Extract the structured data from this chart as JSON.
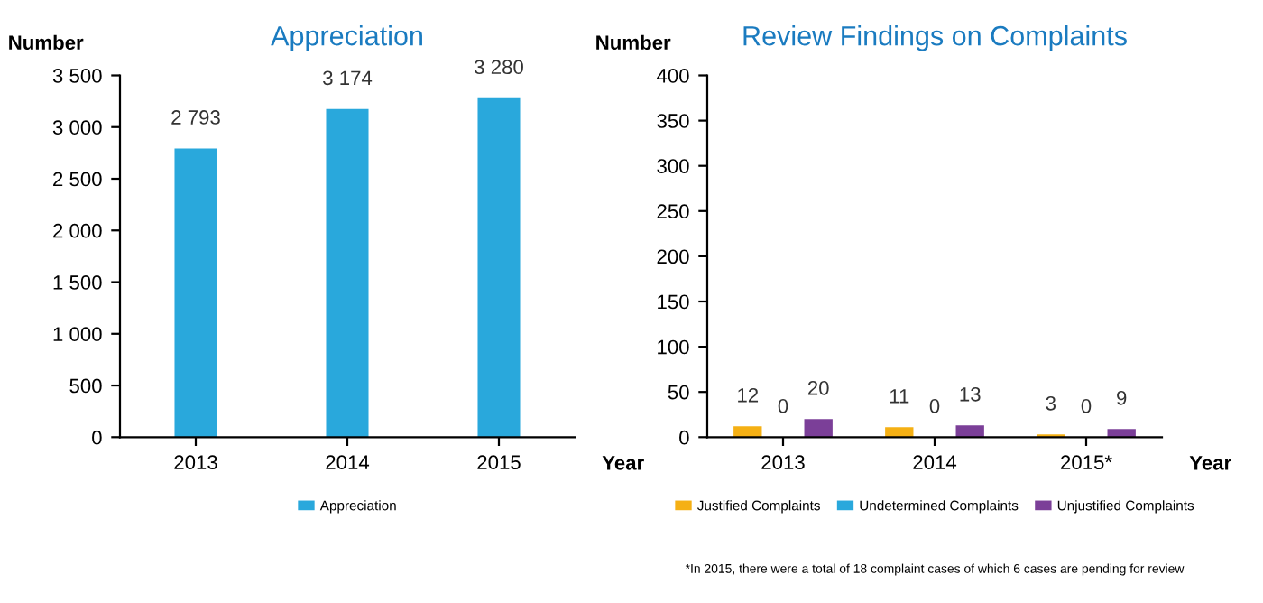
{
  "chart_data": [
    {
      "type": "bar",
      "title": "Appreciation",
      "ylabel": "Number",
      "xlabel": "Year",
      "categories": [
        "2013",
        "2014",
        "2015"
      ],
      "series": [
        {
          "name": "Appreciation",
          "color": "#29a8dc",
          "values": [
            2793,
            3174,
            3280
          ],
          "value_labels": [
            "2 793",
            "3 174",
            "3 280"
          ]
        }
      ],
      "ylim": [
        0,
        3500
      ],
      "yticks": [
        0,
        500,
        {
          "value": 1000,
          "label": "1 000"
        },
        {
          "value": 1500,
          "label": "1 500"
        },
        {
          "value": 2000,
          "label": "2 000"
        },
        {
          "value": 2500,
          "label": "2 500"
        },
        {
          "value": 3000,
          "label": "3 000"
        },
        {
          "value": 3500,
          "label": "3 500"
        }
      ],
      "grid": false,
      "legend": "bottom"
    },
    {
      "type": "bar",
      "title": "Review Findings on Complaints",
      "ylabel": "Number",
      "xlabel": "Year",
      "categories": [
        "2013",
        "2014",
        "2015*"
      ],
      "series": [
        {
          "name": "Justified Complaints",
          "color": "#f5b014",
          "values": [
            12,
            11,
            3
          ]
        },
        {
          "name": "Undetermined Complaints",
          "color": "#29a8dc",
          "values": [
            0,
            0,
            0
          ]
        },
        {
          "name": "Unjustified Complaints",
          "color": "#7b3f98",
          "values": [
            20,
            13,
            9
          ]
        }
      ],
      "ylim": [
        0,
        400
      ],
      "yticks": [
        0,
        50,
        100,
        150,
        200,
        250,
        300,
        350,
        400
      ],
      "grid": false,
      "legend": "bottom",
      "data_labels": true,
      "annotations": [
        "*In 2015, there were a total of 18 complaint cases of which 6 cases are pending for review"
      ]
    }
  ]
}
